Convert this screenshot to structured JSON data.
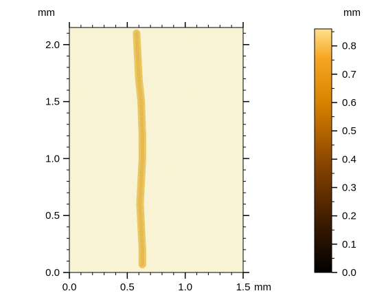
{
  "chart_data": {
    "type": "heatmap",
    "x_unit": "mm",
    "y_unit": "mm",
    "colorbar_unit": "mm",
    "xlim": [
      0,
      1.5
    ],
    "ylim": [
      0,
      2.15
    ],
    "x_ticks": [
      {
        "value": 0.0,
        "label": "0.0"
      },
      {
        "value": 0.5,
        "label": "0.5"
      },
      {
        "value": 1.0,
        "label": "1.0"
      },
      {
        "value": 1.5,
        "label": "1.5"
      }
    ],
    "y_ticks": [
      {
        "value": 0.0,
        "label": "0.0"
      },
      {
        "value": 0.5,
        "label": "0.5"
      },
      {
        "value": 1.0,
        "label": "1.0"
      },
      {
        "value": 1.5,
        "label": "1.5"
      },
      {
        "value": 2.0,
        "label": "2.0"
      }
    ],
    "colorbar_range": [
      0,
      0.86
    ],
    "colorbar_ticks": [
      {
        "value": 0.0,
        "label": "0.0"
      },
      {
        "value": 0.1,
        "label": "0.1"
      },
      {
        "value": 0.2,
        "label": "0.2"
      },
      {
        "value": 0.3,
        "label": "0.3"
      },
      {
        "value": 0.4,
        "label": "0.4"
      },
      {
        "value": 0.5,
        "label": "0.5"
      },
      {
        "value": 0.6,
        "label": "0.6"
      },
      {
        "value": 0.7,
        "label": "0.7"
      },
      {
        "value": 0.8,
        "label": "0.8"
      }
    ],
    "colormap": [
      "#000000",
      "#3a1a00",
      "#8a4500",
      "#d98300",
      "#f5a623",
      "#ffe08a"
    ],
    "background_color": "#f8f2d0",
    "stripe_color": "#e6b93c",
    "background_height": 0.03,
    "stripe": {
      "height": 0.4,
      "path": [
        [
          0.58,
          2.1
        ],
        [
          0.59,
          1.9
        ],
        [
          0.6,
          1.7
        ],
        [
          0.62,
          1.5
        ],
        [
          0.63,
          1.2
        ],
        [
          0.63,
          1.0
        ],
        [
          0.62,
          0.8
        ],
        [
          0.61,
          0.6
        ],
        [
          0.62,
          0.4
        ],
        [
          0.63,
          0.2
        ],
        [
          0.63,
          0.07
        ]
      ]
    }
  }
}
